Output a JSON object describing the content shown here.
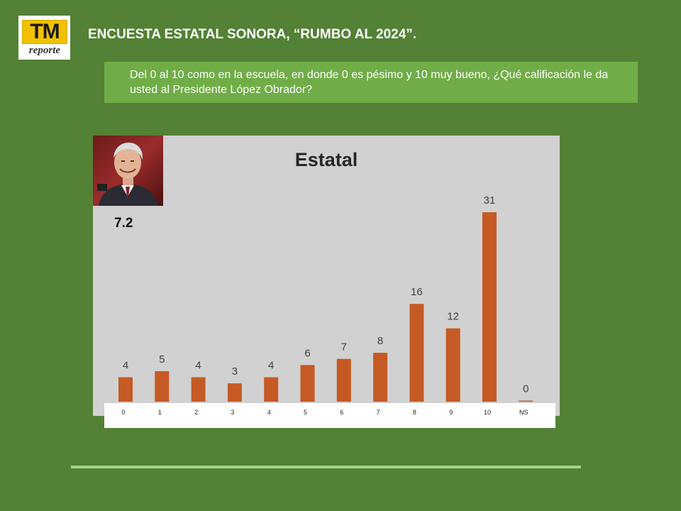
{
  "header": {
    "title": "ENCUESTA ESTATAL SONORA, “RUMBO AL 2024”.",
    "logo_main": "TM",
    "logo_sub": "reporte"
  },
  "question": "Del 0 al 10 como en la escuela, en donde 0 es pésimo y 10 muy bueno, ¿Qué calificación le da usted al Presidente López Obrador?",
  "average": "7.2",
  "colors": {
    "background": "#538135",
    "question_box": "#70ad47",
    "panel": "#d1d1d1",
    "bar": "#c55a24",
    "divider": "#a9d18e"
  },
  "chart_data": {
    "type": "bar",
    "title": "Estatal",
    "categories": [
      "0",
      "1",
      "2",
      "3",
      "4",
      "5",
      "6",
      "7",
      "8",
      "9",
      "10",
      "NS"
    ],
    "values": [
      4,
      5,
      4,
      3,
      4,
      6,
      7,
      8,
      16,
      12,
      31,
      0
    ],
    "data_labels": [
      "4",
      "5",
      "4",
      "3",
      "4",
      "6",
      "7",
      "8",
      "16",
      "12",
      "31",
      "0"
    ],
    "xlabel": "",
    "ylabel": "",
    "ylim": [
      0,
      31
    ],
    "grid": false,
    "legend": "none"
  }
}
